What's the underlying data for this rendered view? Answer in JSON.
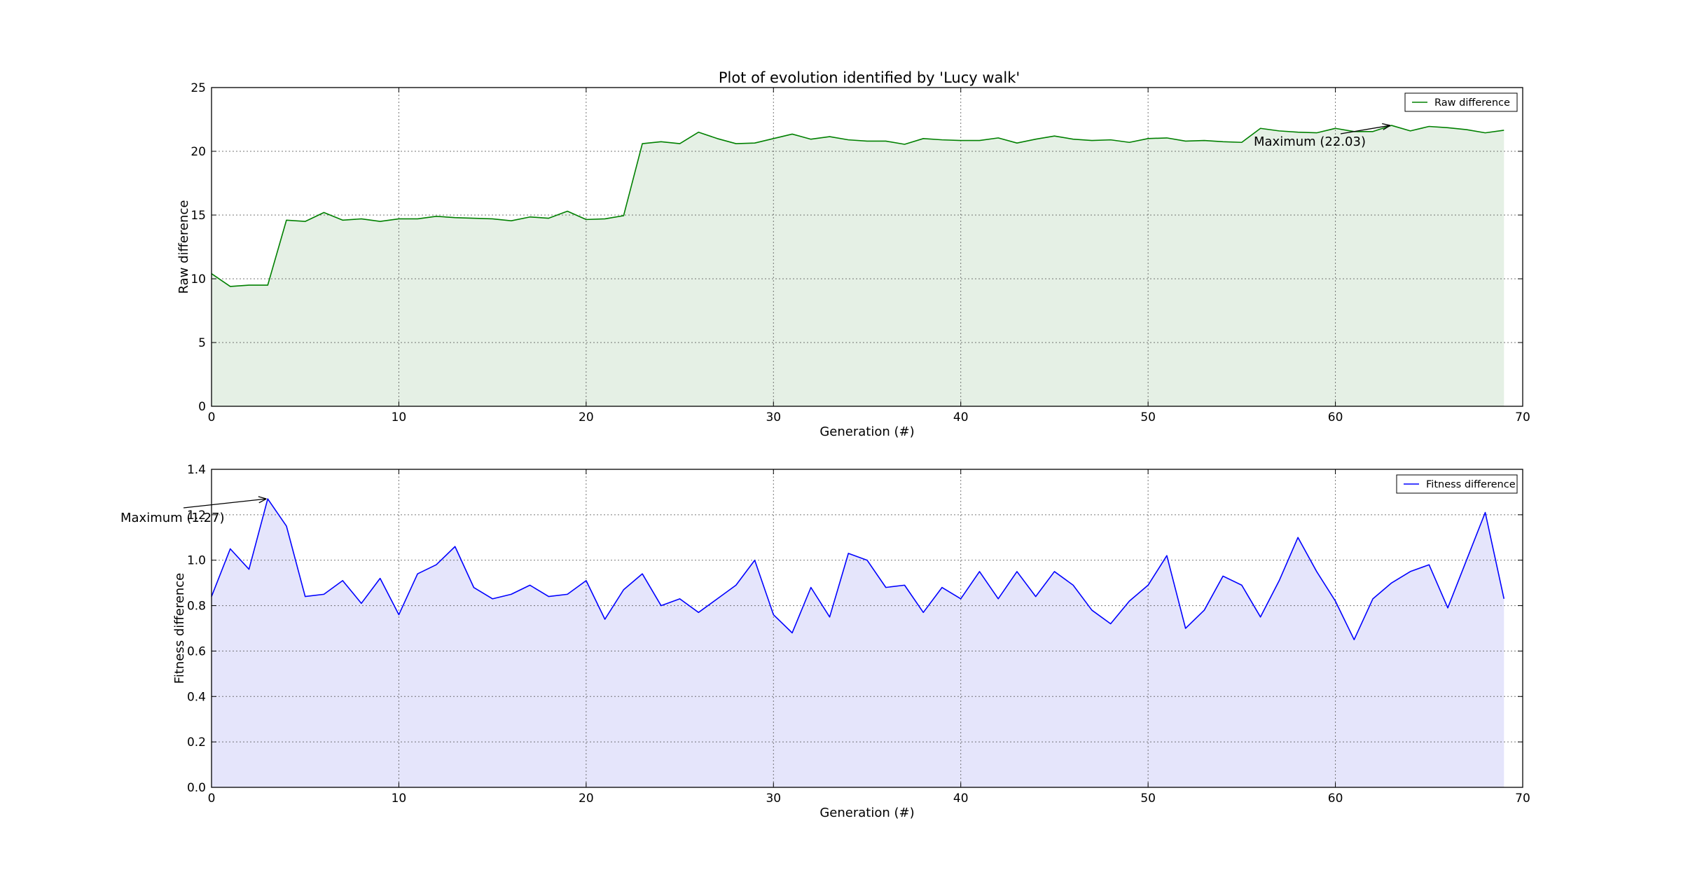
{
  "chart_data": [
    {
      "type": "area",
      "title": "Plot of evolution identified by 'Lucy walk'",
      "xlabel": "Generation (#)",
      "ylabel": "Raw difference",
      "xlim": [
        0,
        70
      ],
      "ylim": [
        0,
        25
      ],
      "xticks": [
        "0",
        "10",
        "20",
        "30",
        "40",
        "50",
        "60",
        "70"
      ],
      "yticks": [
        "0",
        "5",
        "10",
        "15",
        "20",
        "25"
      ],
      "grid": true,
      "legend_position": "top-right",
      "line_color": "#008000",
      "fill_color": "#e5f0e5",
      "series": [
        {
          "name": "Raw difference",
          "x": [
            0,
            1,
            2,
            3,
            4,
            5,
            6,
            7,
            8,
            9,
            10,
            11,
            12,
            13,
            14,
            15,
            16,
            17,
            18,
            19,
            20,
            21,
            22,
            23,
            24,
            25,
            26,
            27,
            28,
            29,
            30,
            31,
            32,
            33,
            34,
            35,
            36,
            37,
            38,
            39,
            40,
            41,
            42,
            43,
            44,
            45,
            46,
            47,
            48,
            49,
            50,
            51,
            52,
            53,
            54,
            55,
            56,
            57,
            58,
            59,
            60,
            61,
            62,
            63,
            64,
            65,
            66,
            67,
            68,
            69
          ],
          "values": [
            10.4,
            9.4,
            9.5,
            9.5,
            14.6,
            14.5,
            15.2,
            14.6,
            14.7,
            14.5,
            14.7,
            14.7,
            14.9,
            14.8,
            14.75,
            14.7,
            14.55,
            14.85,
            14.75,
            15.3,
            14.65,
            14.7,
            14.95,
            20.6,
            20.75,
            20.6,
            21.5,
            21.0,
            20.6,
            20.65,
            21.0,
            21.35,
            20.95,
            21.15,
            20.9,
            20.8,
            20.8,
            20.55,
            21.0,
            20.9,
            20.85,
            20.85,
            21.05,
            20.65,
            20.95,
            21.2,
            20.95,
            20.85,
            20.9,
            20.7,
            21.0,
            21.05,
            20.8,
            20.85,
            20.75,
            20.7,
            21.8,
            21.6,
            21.5,
            21.45,
            21.8,
            21.55,
            21.55,
            22.03,
            21.6,
            21.95,
            21.85,
            21.7,
            21.45,
            21.65
          ]
        }
      ],
      "annotation": {
        "text": "Maximum (22.03)",
        "x": 63,
        "y": 22.03
      }
    },
    {
      "type": "area",
      "title": "",
      "xlabel": "Generation (#)",
      "ylabel": "Fitness difference",
      "xlim": [
        0,
        70
      ],
      "ylim": [
        0,
        1.4
      ],
      "xticks": [
        "0",
        "10",
        "20",
        "30",
        "40",
        "50",
        "60",
        "70"
      ],
      "yticks": [
        "0.0",
        "0.2",
        "0.4",
        "0.6",
        "0.8",
        "1.0",
        "1.2",
        "1.4"
      ],
      "grid": true,
      "legend_position": "top-right",
      "line_color": "#0000ff",
      "fill_color": "#e5e5fb",
      "series": [
        {
          "name": "Fitness difference",
          "x": [
            0,
            1,
            2,
            3,
            4,
            5,
            6,
            7,
            8,
            9,
            10,
            11,
            12,
            13,
            14,
            15,
            16,
            17,
            18,
            19,
            20,
            21,
            22,
            23,
            24,
            25,
            26,
            27,
            28,
            29,
            30,
            31,
            32,
            33,
            34,
            35,
            36,
            37,
            38,
            39,
            40,
            41,
            42,
            43,
            44,
            45,
            46,
            47,
            48,
            49,
            50,
            51,
            52,
            53,
            54,
            55,
            56,
            57,
            58,
            59,
            60,
            61,
            62,
            63,
            64,
            65,
            66,
            67,
            68,
            69
          ],
          "values": [
            0.84,
            1.05,
            0.96,
            1.27,
            1.15,
            0.84,
            0.85,
            0.91,
            0.81,
            0.92,
            0.76,
            0.94,
            0.98,
            1.06,
            0.88,
            0.83,
            0.85,
            0.89,
            0.84,
            0.85,
            0.91,
            0.74,
            0.87,
            0.94,
            0.8,
            0.83,
            0.77,
            0.83,
            0.89,
            1.0,
            0.76,
            0.68,
            0.88,
            0.75,
            1.03,
            1.0,
            0.88,
            0.89,
            0.77,
            0.88,
            0.83,
            0.95,
            0.83,
            0.95,
            0.84,
            0.95,
            0.89,
            0.78,
            0.72,
            0.82,
            0.89,
            1.02,
            0.7,
            0.78,
            0.93,
            0.89,
            0.75,
            0.91,
            1.1,
            0.95,
            0.82,
            0.65,
            0.83,
            0.9,
            0.95,
            0.98,
            0.79,
            1.0,
            1.21,
            0.83
          ]
        }
      ],
      "annotation": {
        "text": "Maximum (1.27)",
        "x": 3,
        "y": 1.27
      }
    }
  ]
}
